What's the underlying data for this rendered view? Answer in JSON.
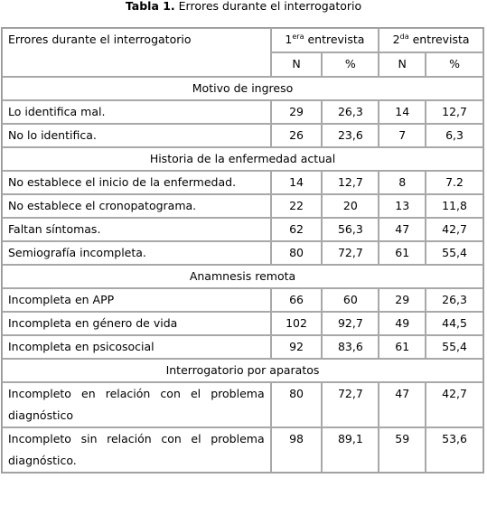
{
  "caption": {
    "bold": "Tabla 1.",
    "text": " Errores durante el interrogatorio"
  },
  "header": {
    "col_label": "Errores durante el interrogatorio",
    "interview1_num": "1",
    "interview1_sup": "era",
    "interview1_word": " entrevista",
    "interview2_num": "2",
    "interview2_sup": "da",
    "interview2_word": " entrevista",
    "n_label": "N",
    "pct_label": "%"
  },
  "sections": [
    {
      "title": "Motivo de ingreso",
      "rows": [
        {
          "label": "Lo identifica mal.",
          "n1": "29",
          "p1": "26,3",
          "n2": "14",
          "p2": "12,7"
        },
        {
          "label": "No lo identifica.",
          "n1": "26",
          "p1": "23,6",
          "n2": "7",
          "p2": "6,3"
        }
      ]
    },
    {
      "title": "Historia de la enfermedad actual",
      "rows": [
        {
          "label": "No establece el inicio de la enfermedad.",
          "n1": "14",
          "p1": "12,7",
          "n2": "8",
          "p2": "7.2"
        },
        {
          "label": "No establece el cronopatograma.",
          "n1": "22",
          "p1": "20",
          "n2": "13",
          "p2": "11,8"
        },
        {
          "label": "Faltan síntomas.",
          "n1": "62",
          "p1": "56,3",
          "n2": "47",
          "p2": "42,7"
        },
        {
          "label": "Semiografía incompleta.",
          "n1": "80",
          "p1": "72,7",
          "n2": "61",
          "p2": "55,4"
        }
      ]
    },
    {
      "title": "Anamnesis remota",
      "rows": [
        {
          "label": "Incompleta en APP",
          "n1": "66",
          "p1": "60",
          "n2": "29",
          "p2": "26,3"
        },
        {
          "label": "Incompleta en género de vida",
          "n1": "102",
          "p1": "92,7",
          "n2": "49",
          "p2": "44,5"
        },
        {
          "label": "Incompleta en psicosocial",
          "n1": "92",
          "p1": "83,6",
          "n2": "61",
          "p2": "55,4"
        }
      ]
    },
    {
      "title": "Interrogatorio por aparatos",
      "rows": [
        {
          "label": "Incompleto en relación con el problema diagnóstico",
          "n1": "80",
          "p1": "72,7",
          "n2": "47",
          "p2": "42,7"
        },
        {
          "label": "Incompleto sin relación con el problema diagnóstico.",
          "n1": "98",
          "p1": "89,1",
          "n2": "59",
          "p2": "53,6"
        }
      ]
    }
  ]
}
